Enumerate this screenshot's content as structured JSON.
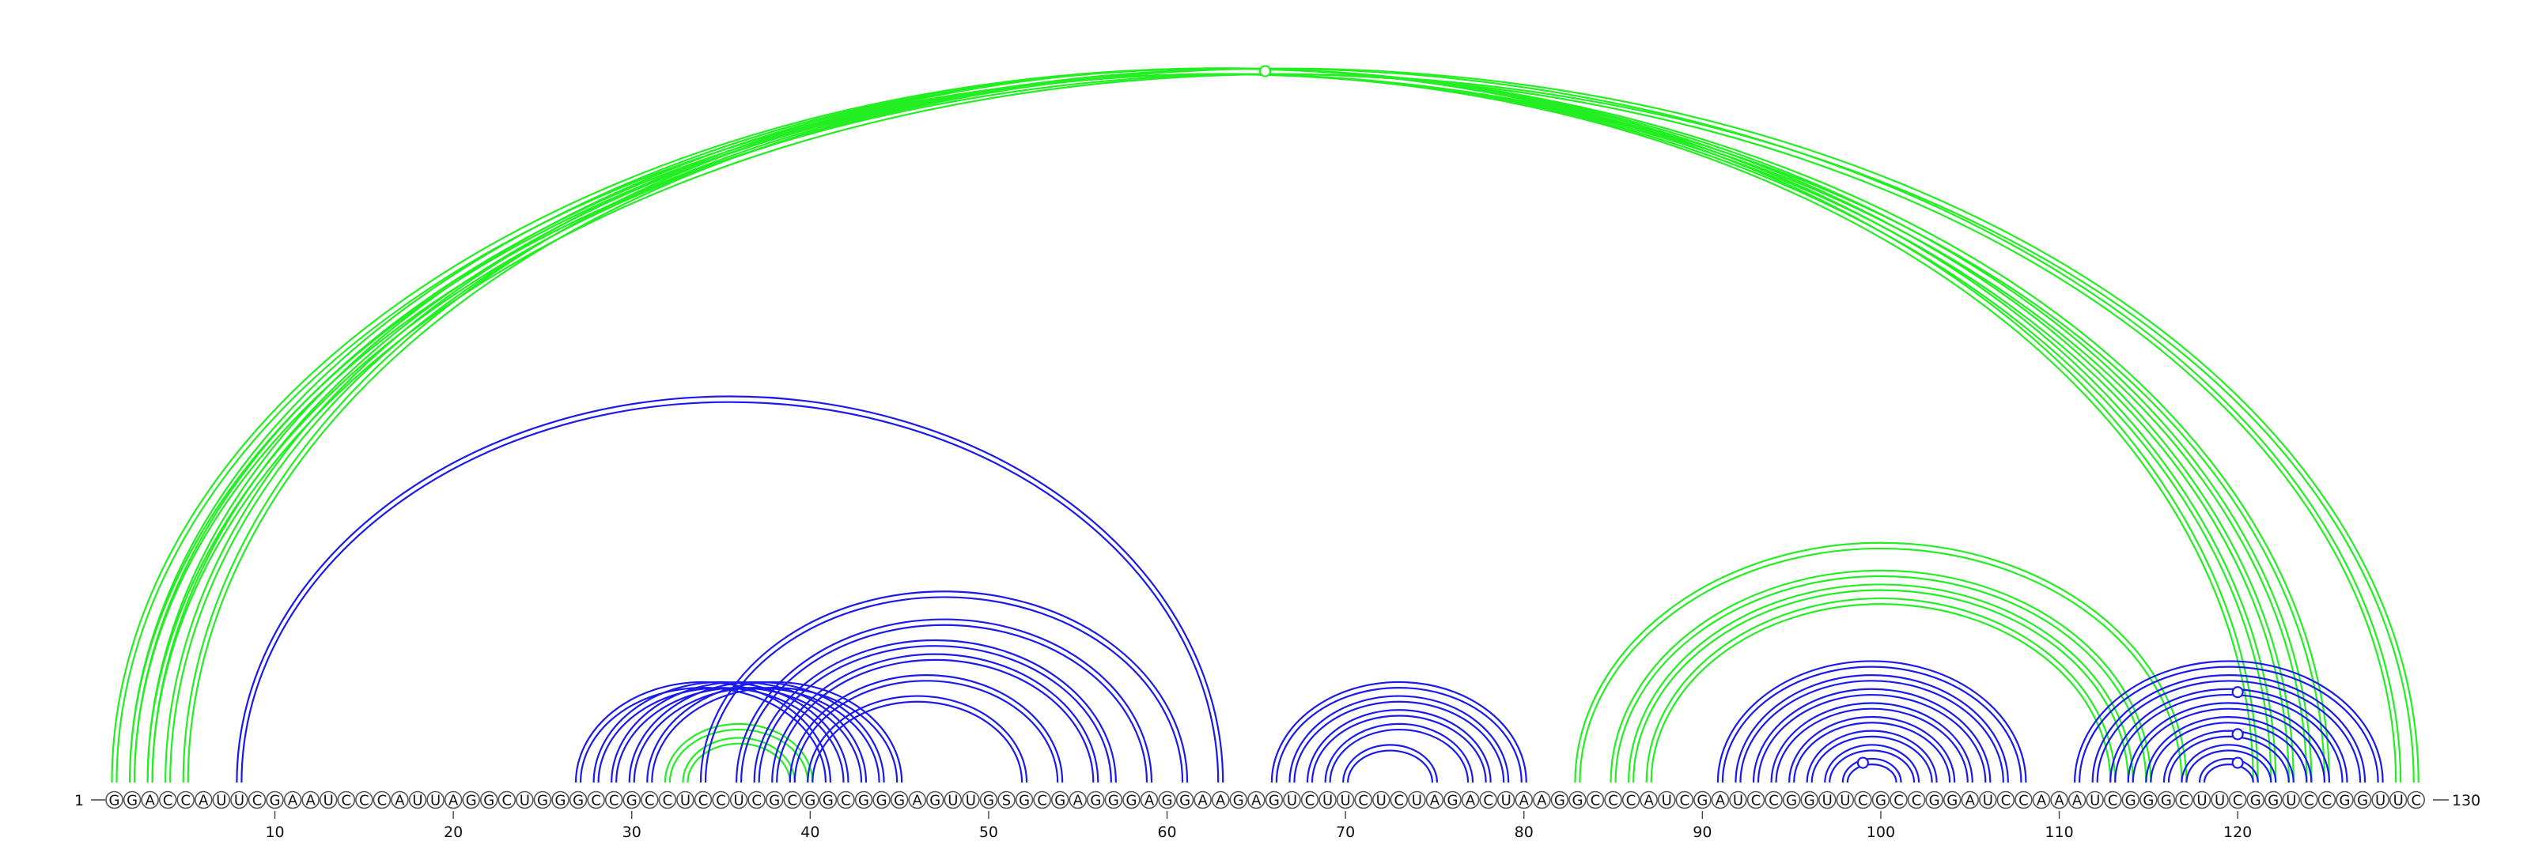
{
  "diagram": {
    "type": "rna-arc-diagram",
    "sequence": "GGACCAUUCGAAUCCCAUUAGGCUGGGCCGCCUCCUCGCGGCGGGAGUUGSGCGAGGGAGGAAGAGUCUUCUCUAGACUAAGGCCCAUCGAUCCGGUUCGCCGGAUCCAAAUCGGGCUUCGGUCCGGUUC",
    "start_label": "1",
    "end_label": "130",
    "ticks": [
      "10",
      "20",
      "30",
      "40",
      "50",
      "60",
      "70",
      "80",
      "90",
      "100",
      "110",
      "120"
    ],
    "colors": {
      "green": "#22ee22",
      "blue": "#1a1aee",
      "circle_stroke": "#555555"
    }
  },
  "chart_data": {
    "type": "arc",
    "length": 130,
    "tick_positions": [
      10,
      20,
      30,
      40,
      50,
      60,
      70,
      80,
      90,
      100,
      110,
      120
    ],
    "arc_groups": [
      {
        "color": "green",
        "pairs": [
          [
            1,
            125
          ],
          [
            2,
            124
          ],
          [
            3,
            123
          ],
          [
            4,
            122
          ],
          [
            5,
            121
          ]
        ],
        "doubled": true
      },
      {
        "color": "green",
        "pairs": [
          [
            3,
            130
          ],
          [
            2,
            129
          ]
        ],
        "doubled": true
      },
      {
        "color": "blue",
        "pairs": [
          [
            8,
            63
          ]
        ],
        "doubled": true
      },
      {
        "color": "blue",
        "pairs": [
          [
            27,
            41
          ],
          [
            28,
            42
          ],
          [
            29,
            43
          ],
          [
            30,
            44
          ],
          [
            31,
            45
          ]
        ],
        "doubled": true
      },
      {
        "color": "green",
        "pairs": [
          [
            32,
            40
          ],
          [
            33,
            39
          ]
        ],
        "doubled": true
      },
      {
        "color": "blue",
        "pairs": [
          [
            34,
            61
          ],
          [
            36,
            59
          ],
          [
            37,
            57
          ],
          [
            38,
            56
          ],
          [
            39,
            54
          ],
          [
            40,
            52
          ]
        ],
        "doubled": true
      },
      {
        "color": "blue",
        "pairs": [
          [
            66,
            80
          ],
          [
            67,
            79
          ],
          [
            68,
            78
          ],
          [
            69,
            77
          ],
          [
            70,
            75
          ]
        ],
        "doubled": true
      },
      {
        "color": "green",
        "pairs": [
          [
            83,
            117
          ],
          [
            85,
            115
          ],
          [
            86,
            114
          ],
          [
            87,
            113
          ]
        ],
        "doubled": true
      },
      {
        "color": "blue",
        "pairs": [
          [
            91,
            108
          ],
          [
            92,
            107
          ],
          [
            93,
            106
          ],
          [
            94,
            105
          ],
          [
            95,
            104
          ],
          [
            96,
            103
          ],
          [
            97,
            102
          ],
          [
            98,
            101
          ]
        ],
        "doubled": true
      },
      {
        "color": "blue",
        "pairs": [
          [
            111,
            128
          ],
          [
            112,
            127
          ],
          [
            113,
            126
          ],
          [
            114,
            125
          ],
          [
            115,
            124
          ],
          [
            116,
            123
          ],
          [
            117,
            122
          ],
          [
            118,
            121
          ]
        ],
        "doubled": true
      }
    ],
    "markers": [
      {
        "position": 65.5,
        "pair": [
          1,
          130
        ],
        "color": "green"
      },
      {
        "position": 99,
        "pair": [
          98,
          101
        ],
        "color": "blue"
      },
      {
        "position": 120,
        "pair": [
          118,
          121
        ],
        "color": "blue"
      },
      {
        "position": 120,
        "pair": [
          116,
          123
        ],
        "color": "blue"
      },
      {
        "position": 120,
        "pair": [
          113,
          126
        ],
        "color": "blue"
      }
    ]
  }
}
